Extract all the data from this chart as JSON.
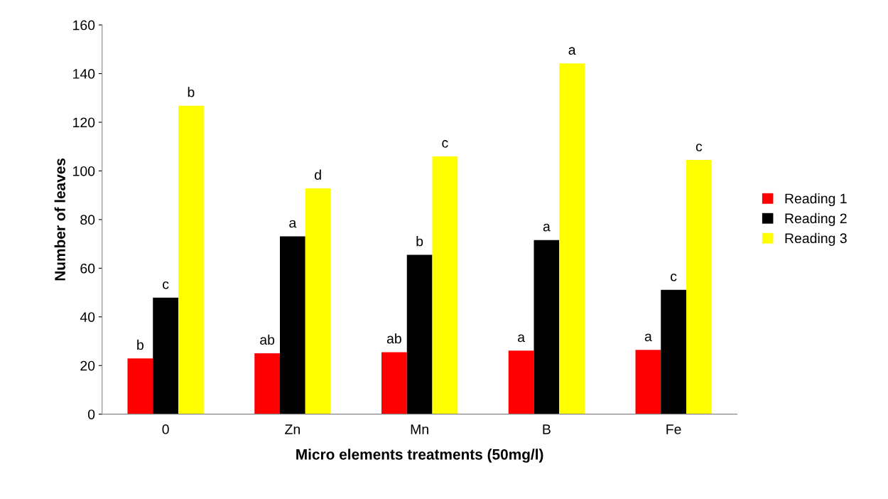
{
  "chart_data": {
    "type": "bar",
    "xlabel": "Micro elements treatments (50mg/l)",
    "ylabel": "Number of leaves",
    "categories": [
      "0",
      "Zn",
      "Mn",
      "B",
      "Fe"
    ],
    "series": [
      {
        "name": "Reading 1",
        "color": "#ff0000",
        "values": [
          22.9,
          25,
          25.5,
          26.1,
          26.4
        ],
        "value_labels": [
          "b",
          "ab",
          "ab",
          "a",
          "a"
        ]
      },
      {
        "name": "Reading 2",
        "color": "#000000",
        "values": [
          47.9,
          73.1,
          65.5,
          71.6,
          51.1
        ],
        "value_labels": [
          "c",
          "a",
          "b",
          "a",
          "c"
        ]
      },
      {
        "name": "Reading 3",
        "color": "#ffff00",
        "values": [
          126.8,
          92.8,
          106,
          144.2,
          104.5
        ],
        "value_labels": [
          "b",
          "d",
          "c",
          "a",
          "c"
        ]
      }
    ],
    "ylim": [
      0,
      160
    ],
    "yticks": [
      0,
      20,
      40,
      60,
      80,
      100,
      120,
      140,
      160
    ],
    "grid": false,
    "legend": "right"
  }
}
